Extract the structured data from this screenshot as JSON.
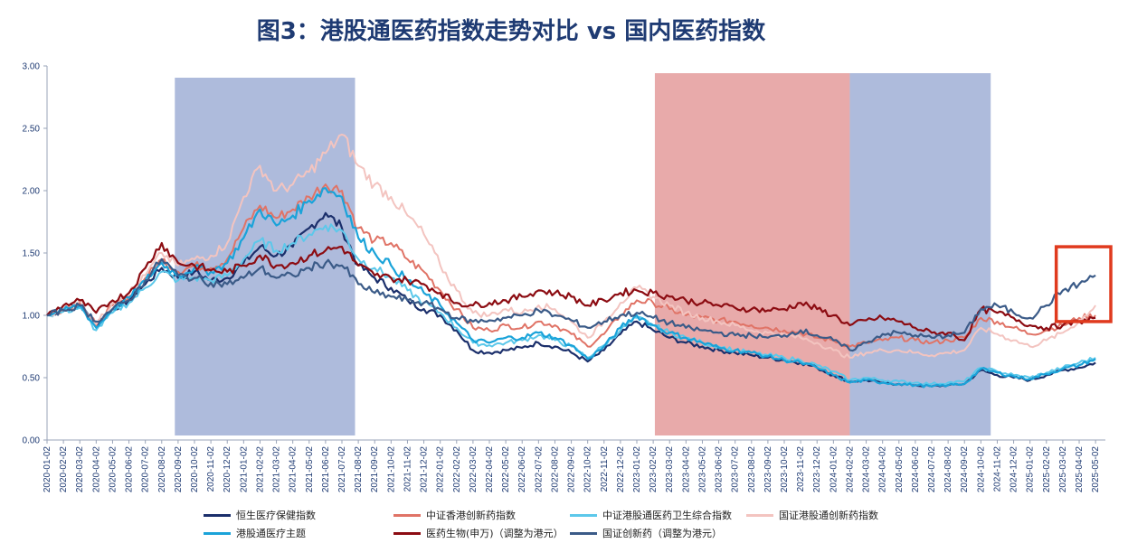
{
  "chart_data": {
    "type": "line",
    "title": "图3：港股通医药指数走势对比 vs 国内医药指数",
    "ylim": [
      0,
      3
    ],
    "y_ticks": [
      "0.00",
      "0.50",
      "1.00",
      "1.50",
      "2.00",
      "2.50",
      "3.00"
    ],
    "x_ticks": [
      "2020-01-02",
      "2020-02-02",
      "2020-03-02",
      "2020-04-02",
      "2020-05-02",
      "2020-06-02",
      "2020-07-02",
      "2020-08-02",
      "2020-09-02",
      "2020-10-02",
      "2020-11-02",
      "2020-12-02",
      "2021-01-02",
      "2021-02-02",
      "2021-03-02",
      "2021-04-02",
      "2021-05-02",
      "2021-06-02",
      "2021-07-02",
      "2021-08-02",
      "2021-09-02",
      "2021-10-02",
      "2021-11-02",
      "2021-12-02",
      "2022-01-02",
      "2022-02-02",
      "2022-03-02",
      "2022-04-02",
      "2022-05-02",
      "2022-06-02",
      "2022-07-02",
      "2022-08-02",
      "2022-09-02",
      "2022-10-02",
      "2022-11-02",
      "2022-12-02",
      "2023-01-02",
      "2023-02-02",
      "2023-03-02",
      "2023-04-02",
      "2023-05-02",
      "2023-06-02",
      "2023-07-02",
      "2023-08-02",
      "2023-09-02",
      "2023-10-02",
      "2023-11-02",
      "2023-12-02",
      "2024-01-02",
      "2024-02-02",
      "2024-03-02",
      "2024-04-02",
      "2024-05-02",
      "2024-06-02",
      "2024-07-02",
      "2024-08-02",
      "2024-09-02",
      "2024-10-02",
      "2024-11-02",
      "2024-12-02",
      "2025-01-02",
      "2025-02-02",
      "2025-03-02",
      "2025-04-02",
      "2025-05-02"
    ],
    "shaded_regions": [
      {
        "from": 7.8,
        "to": 18.8,
        "color": "#aebbdc"
      },
      {
        "from": 37.1,
        "to": 49.0,
        "color": "#e8aaaa"
      },
      {
        "from": 49.0,
        "to": 57.6,
        "color": "#aebbdc"
      }
    ],
    "highlight_box": {
      "from": 61.6,
      "to": 65.5,
      "y_from": 0.95,
      "y_to": 1.55,
      "color": "#e03a1e"
    },
    "series": [
      {
        "name": "恒生医疗保健指数",
        "color": "#1b2f6b",
        "width": 2.2,
        "values": [
          1.0,
          1.05,
          1.08,
          0.92,
          1.05,
          1.12,
          1.25,
          1.38,
          1.3,
          1.35,
          1.28,
          1.3,
          1.42,
          1.55,
          1.48,
          1.55,
          1.7,
          1.82,
          1.7,
          1.4,
          1.3,
          1.22,
          1.12,
          1.05,
          1.0,
          0.88,
          0.72,
          0.7,
          0.72,
          0.74,
          0.78,
          0.75,
          0.7,
          0.63,
          0.72,
          0.85,
          0.95,
          0.88,
          0.82,
          0.78,
          0.75,
          0.72,
          0.7,
          0.68,
          0.66,
          0.64,
          0.62,
          0.58,
          0.52,
          0.47,
          0.48,
          0.46,
          0.45,
          0.44,
          0.43,
          0.44,
          0.45,
          0.56,
          0.52,
          0.5,
          0.48,
          0.52,
          0.56,
          0.58,
          0.62
        ]
      },
      {
        "name": "中证香港创新药指数",
        "color": "#e07366",
        "width": 2.0,
        "values": [
          1.0,
          1.05,
          1.1,
          0.92,
          1.08,
          1.15,
          1.3,
          1.45,
          1.35,
          1.4,
          1.38,
          1.45,
          1.7,
          1.88,
          1.78,
          1.85,
          1.95,
          2.05,
          2.0,
          1.7,
          1.6,
          1.58,
          1.45,
          1.35,
          1.2,
          1.05,
          0.9,
          0.88,
          0.92,
          0.9,
          0.95,
          0.92,
          0.85,
          0.75,
          0.85,
          1.0,
          1.12,
          1.1,
          1.05,
          1.0,
          0.98,
          0.96,
          0.95,
          0.92,
          0.9,
          0.88,
          0.86,
          0.82,
          0.8,
          0.75,
          0.78,
          0.8,
          0.82,
          0.8,
          0.78,
          0.8,
          0.82,
          0.98,
          0.95,
          0.9,
          0.85,
          0.88,
          0.92,
          0.98,
          1.0
        ]
      },
      {
        "name": "中证港股通医药卫生综合指数",
        "color": "#5cc8ea",
        "width": 2.0,
        "values": [
          1.0,
          1.03,
          1.06,
          0.88,
          1.02,
          1.1,
          1.22,
          1.35,
          1.28,
          1.3,
          1.28,
          1.32,
          1.45,
          1.6,
          1.52,
          1.58,
          1.65,
          1.72,
          1.68,
          1.45,
          1.38,
          1.3,
          1.2,
          1.1,
          1.02,
          0.9,
          0.78,
          0.76,
          0.78,
          0.8,
          0.84,
          0.8,
          0.75,
          0.66,
          0.76,
          0.88,
          0.98,
          0.92,
          0.86,
          0.82,
          0.78,
          0.75,
          0.72,
          0.7,
          0.68,
          0.66,
          0.64,
          0.6,
          0.55,
          0.48,
          0.5,
          0.48,
          0.47,
          0.46,
          0.45,
          0.46,
          0.47,
          0.58,
          0.55,
          0.52,
          0.5,
          0.54,
          0.58,
          0.62,
          0.66
        ]
      },
      {
        "name": "国证港股通创新药指数",
        "color": "#f3c4c0",
        "width": 2.0,
        "values": [
          1.0,
          1.06,
          1.12,
          0.93,
          1.1,
          1.18,
          1.32,
          1.5,
          1.4,
          1.45,
          1.48,
          1.58,
          1.95,
          2.2,
          2.0,
          2.05,
          2.15,
          2.3,
          2.45,
          2.2,
          2.05,
          1.95,
          1.8,
          1.65,
          1.4,
          1.2,
          1.02,
          1.0,
          1.05,
          1.02,
          1.08,
          1.05,
          0.95,
          0.82,
          0.95,
          1.1,
          1.22,
          1.15,
          1.08,
          1.02,
          0.98,
          0.95,
          0.92,
          0.88,
          0.86,
          0.84,
          0.82,
          0.78,
          0.72,
          0.66,
          0.7,
          0.72,
          0.72,
          0.7,
          0.68,
          0.7,
          0.72,
          0.9,
          0.85,
          0.8,
          0.75,
          0.8,
          0.86,
          0.95,
          1.08
        ]
      },
      {
        "name": "港股通医疗主题",
        "color": "#1aa3d9",
        "width": 2.2,
        "values": [
          1.0,
          1.04,
          1.08,
          0.9,
          1.05,
          1.14,
          1.28,
          1.42,
          1.32,
          1.38,
          1.35,
          1.42,
          1.62,
          1.85,
          1.72,
          1.8,
          1.92,
          2.02,
          1.95,
          1.62,
          1.5,
          1.4,
          1.28,
          1.18,
          1.08,
          0.94,
          0.8,
          0.78,
          0.82,
          0.82,
          0.86,
          0.82,
          0.76,
          0.65,
          0.75,
          0.9,
          1.0,
          0.92,
          0.86,
          0.82,
          0.78,
          0.74,
          0.72,
          0.7,
          0.67,
          0.64,
          0.62,
          0.58,
          0.52,
          0.46,
          0.48,
          0.46,
          0.45,
          0.44,
          0.43,
          0.44,
          0.45,
          0.57,
          0.54,
          0.51,
          0.49,
          0.53,
          0.57,
          0.6,
          0.65
        ]
      },
      {
        "name": "医药生物(申万)（调整为港元）",
        "color": "#8c0c12",
        "width": 2.2,
        "values": [
          1.0,
          1.08,
          1.12,
          1.02,
          1.12,
          1.18,
          1.38,
          1.58,
          1.42,
          1.4,
          1.36,
          1.35,
          1.4,
          1.48,
          1.4,
          1.42,
          1.48,
          1.52,
          1.55,
          1.4,
          1.32,
          1.3,
          1.28,
          1.25,
          1.18,
          1.1,
          1.08,
          1.1,
          1.12,
          1.15,
          1.2,
          1.18,
          1.15,
          1.08,
          1.12,
          1.18,
          1.2,
          1.18,
          1.15,
          1.12,
          1.1,
          1.08,
          1.06,
          1.05,
          1.04,
          1.05,
          1.1,
          1.05,
          1.0,
          0.92,
          0.96,
          0.98,
          0.95,
          0.9,
          0.86,
          0.86,
          0.8,
          1.05,
          1.02,
          0.98,
          0.92,
          0.9,
          0.92,
          0.95,
          0.98
        ]
      },
      {
        "name": "国证创新药（调整为港元）",
        "color": "#3b5b88",
        "width": 2.2,
        "values": [
          1.0,
          1.04,
          1.08,
          0.95,
          1.05,
          1.12,
          1.28,
          1.45,
          1.32,
          1.3,
          1.26,
          1.25,
          1.3,
          1.38,
          1.3,
          1.32,
          1.38,
          1.42,
          1.4,
          1.25,
          1.18,
          1.15,
          1.12,
          1.1,
          1.05,
          0.98,
          0.95,
          0.96,
          0.98,
          1.0,
          1.04,
          1.0,
          0.96,
          0.9,
          0.95,
          1.0,
          1.02,
          0.98,
          0.94,
          0.9,
          0.88,
          0.86,
          0.84,
          0.84,
          0.82,
          0.84,
          0.88,
          0.84,
          0.8,
          0.72,
          0.78,
          0.85,
          0.86,
          0.84,
          0.82,
          0.84,
          0.86,
          1.05,
          1.08,
          1.02,
          0.98,
          1.08,
          1.2,
          1.25,
          1.32
        ]
      }
    ]
  }
}
